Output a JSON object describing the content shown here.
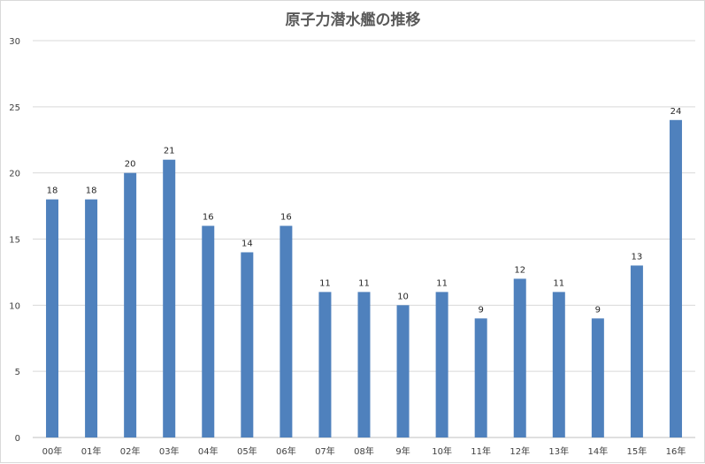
{
  "chart_data": {
    "type": "bar",
    "title": "原子力潜水艦の推移",
    "xlabel": "",
    "ylabel": "",
    "categories": [
      "00年",
      "01年",
      "02年",
      "03年",
      "04年",
      "05年",
      "06年",
      "07年",
      "08年",
      "9年",
      "10年",
      "11年",
      "12年",
      "13年",
      "14年",
      "15年",
      "16年"
    ],
    "values": [
      18,
      18,
      20,
      21,
      16,
      14,
      16,
      11,
      11,
      10,
      11,
      9,
      12,
      11,
      9,
      13,
      24
    ],
    "ylim": [
      0,
      30
    ],
    "yticks": [
      0,
      5,
      10,
      15,
      20,
      25,
      30
    ],
    "grid": true,
    "legend": "none",
    "data_labels": true,
    "colors": {
      "bar": "#4f81bd"
    }
  }
}
